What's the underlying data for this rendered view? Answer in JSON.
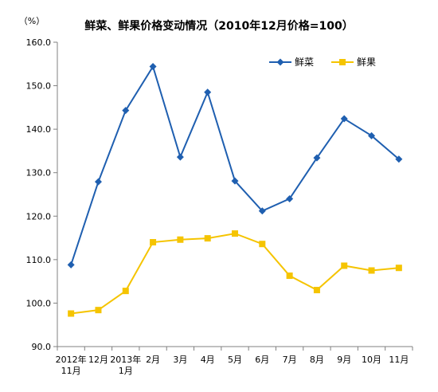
{
  "chart_data": {
    "type": "line",
    "title": "鲜菜、鲜果价格变动情况（2010年12月价格=100）",
    "unit_label": "（%）",
    "xlabel": "",
    "ylabel": "",
    "ylim": [
      90,
      160
    ],
    "yticks": [
      "160.0",
      "150.0",
      "140.0",
      "130.0",
      "120.0",
      "110.0",
      "100.0",
      "90.0"
    ],
    "categories": [
      [
        "2012年",
        "11月"
      ],
      [
        "12月"
      ],
      [
        "2013年",
        "1月"
      ],
      [
        "2月"
      ],
      [
        "3月"
      ],
      [
        "4月"
      ],
      [
        "5月"
      ],
      [
        "6月"
      ],
      [
        "7月"
      ],
      [
        "8月"
      ],
      [
        "9月"
      ],
      [
        "10月"
      ],
      [
        "11月"
      ]
    ],
    "legend_position": "top-right",
    "grid": false,
    "series": [
      {
        "name": "鲜菜",
        "color": "#1f5fb0",
        "marker": "diamond",
        "values": [
          108.8,
          127.9,
          144.3,
          154.4,
          133.6,
          148.5,
          128.1,
          121.2,
          124.0,
          133.4,
          142.4,
          138.5,
          133.1
        ]
      },
      {
        "name": "鲜果",
        "color": "#f5c400",
        "marker": "square",
        "values": [
          97.6,
          98.4,
          102.8,
          114.0,
          114.6,
          114.9,
          116.0,
          113.6,
          106.3,
          103.0,
          108.6,
          107.5,
          108.1
        ]
      }
    ]
  }
}
